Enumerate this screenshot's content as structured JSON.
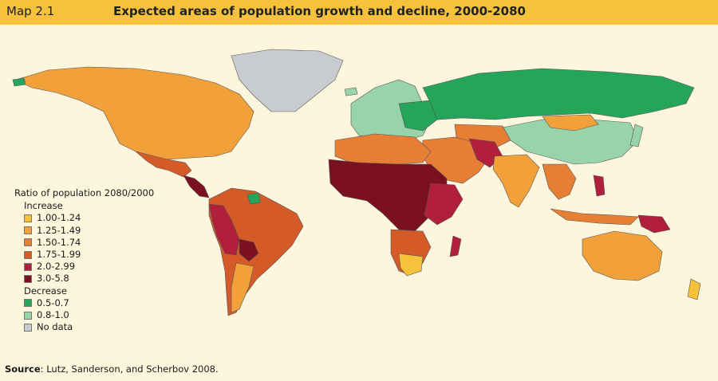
{
  "header": {
    "map_label": "Map 2.1",
    "title": "Expected areas of population growth and decline, 2000-2080"
  },
  "legend": {
    "title": "Ratio of population 2080/2000",
    "increase_label": "Increase",
    "increase_items": [
      {
        "label": "1.00-1.24",
        "color": "#f6c23b"
      },
      {
        "label": "1.25-1.49",
        "color": "#f2a03a"
      },
      {
        "label": "1.50-1.74",
        "color": "#e67e34"
      },
      {
        "label": "1.75-1.99",
        "color": "#d45a28"
      },
      {
        "label": "2.0-2.99",
        "color": "#b21f3a"
      },
      {
        "label": "3.0-5.8",
        "color": "#7a1020"
      }
    ],
    "decrease_label": "Decrease",
    "decrease_items": [
      {
        "label": "0.5-0.7",
        "color": "#24a55a"
      },
      {
        "label": "0.8-1.0",
        "color": "#99d3a9"
      }
    ],
    "nodata_item": {
      "label": "No data",
      "color": "#c9cccf"
    }
  },
  "source": {
    "label": "Source",
    "text": ": Lutz, Sanderson, and Scherbov 2008."
  }
}
